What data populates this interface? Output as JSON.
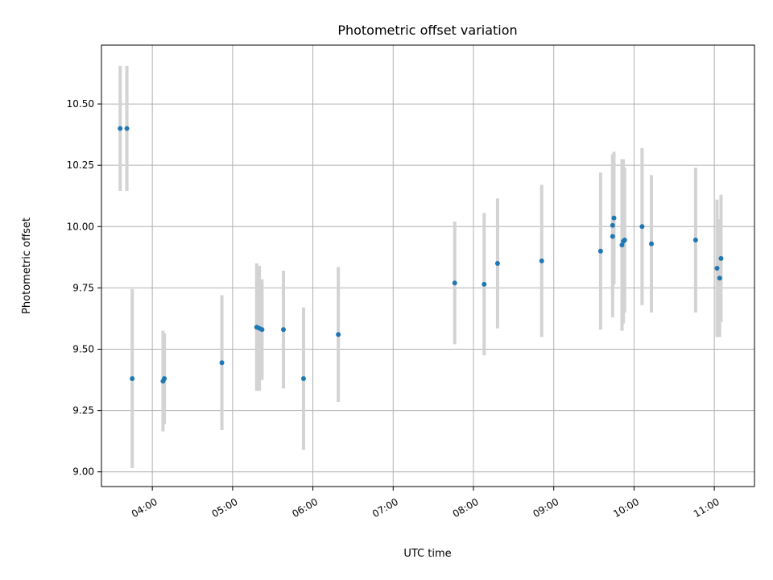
{
  "chart_data": {
    "type": "scatter",
    "title": "Photometric offset variation",
    "xlabel": "UTC time",
    "ylabel": "Photometric offset",
    "x_ticks": [
      "04:00",
      "05:00",
      "06:00",
      "07:00",
      "08:00",
      "09:00",
      "10:00",
      "11:00"
    ],
    "y_ticks": [
      "9.00",
      "9.25",
      "9.50",
      "9.75",
      "10.00",
      "10.25",
      "10.50"
    ],
    "xlim": [
      "03:22",
      "11:30"
    ],
    "ylim": [
      8.94,
      10.74
    ],
    "grid": true,
    "point_color": "#1f77b4",
    "errorbar_color": "#d3d3d3",
    "points": [
      {
        "t": "03:36",
        "y": 10.4,
        "err": 0.255
      },
      {
        "t": "03:41",
        "y": 10.4,
        "err": 0.255
      },
      {
        "t": "03:45",
        "y": 9.38,
        "err": 0.365
      },
      {
        "t": "04:08",
        "y": 9.37,
        "err": 0.205
      },
      {
        "t": "04:09",
        "y": 9.38,
        "err": 0.185
      },
      {
        "t": "04:52",
        "y": 9.445,
        "err": 0.275
      },
      {
        "t": "05:18",
        "y": 9.59,
        "err": 0.26
      },
      {
        "t": "05:20",
        "y": 9.585,
        "err": 0.255
      },
      {
        "t": "05:22",
        "y": 9.58,
        "err": 0.205
      },
      {
        "t": "05:38",
        "y": 9.58,
        "err": 0.24
      },
      {
        "t": "05:53",
        "y": 9.38,
        "err": 0.29
      },
      {
        "t": "06:19",
        "y": 9.56,
        "err": 0.275
      },
      {
        "t": "07:46",
        "y": 9.77,
        "err": 0.25
      },
      {
        "t": "08:08",
        "y": 9.765,
        "err": 0.29
      },
      {
        "t": "08:18",
        "y": 9.85,
        "err": 0.265
      },
      {
        "t": "08:51",
        "y": 9.86,
        "err": 0.31
      },
      {
        "t": "09:35",
        "y": 9.9,
        "err": 0.32
      },
      {
        "t": "09:44",
        "y": 9.96,
        "err": 0.33
      },
      {
        "t": "09:44",
        "y": 10.005,
        "err": 0.29
      },
      {
        "t": "09:45",
        "y": 10.035,
        "err": 0.27
      },
      {
        "t": "09:51",
        "y": 9.925,
        "err": 0.35
      },
      {
        "t": "09:52",
        "y": 9.94,
        "err": 0.335
      },
      {
        "t": "09:53",
        "y": 9.945,
        "err": 0.295
      },
      {
        "t": "10:06",
        "y": 10.0,
        "err": 0.32
      },
      {
        "t": "10:13",
        "y": 9.93,
        "err": 0.28
      },
      {
        "t": "10:46",
        "y": 9.945,
        "err": 0.295
      },
      {
        "t": "11:02",
        "y": 9.83,
        "err": 0.28
      },
      {
        "t": "11:04",
        "y": 9.79,
        "err": 0.24
      },
      {
        "t": "11:05",
        "y": 9.87,
        "err": 0.26
      }
    ]
  }
}
